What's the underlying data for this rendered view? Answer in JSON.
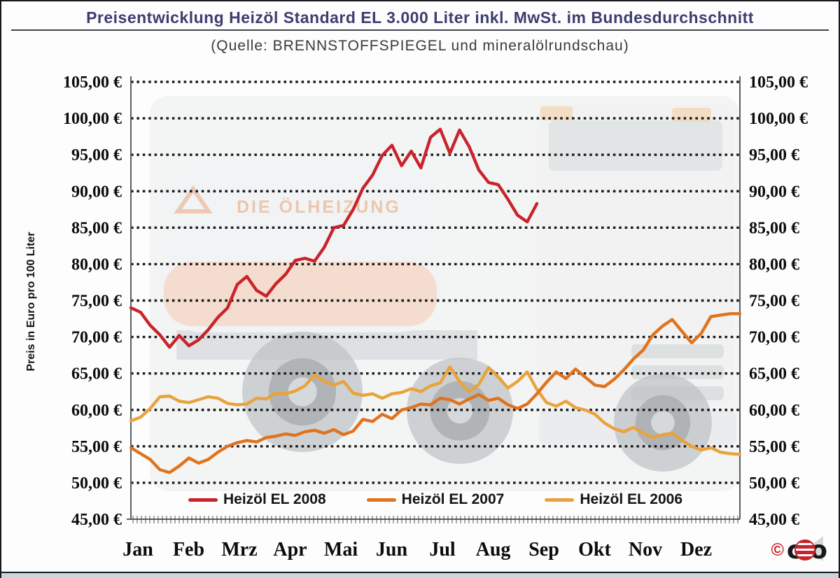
{
  "title": "Preisentwicklung Heizöl Standard EL 3.000 Liter inkl. MwSt. im Bundesdurchschnitt",
  "subtitle": "(Quelle: BRENNSTOFFSPIEGEL und mineralölrundschau)",
  "y_axis": {
    "label": "Preis in Euro pro 100 Liter",
    "tick_labels": [
      "105,00 €",
      "100,00 €",
      "95,00 €",
      "90,00 €",
      "85,00 €",
      "80,00 €",
      "75,00 €",
      "70,00 €",
      "65,00 €",
      "60,00 €",
      "55,00 €",
      "50,00 €",
      "45,00 €"
    ]
  },
  "x_axis": {
    "month_labels": [
      "Jan",
      "Feb",
      "Mrz",
      "Apr",
      "Mai",
      "Jun",
      "Jul",
      "Aug",
      "Sep",
      "Okt",
      "Nov",
      "Dez"
    ]
  },
  "legend": [
    {
      "label": "Heizöl EL 2008",
      "color": "#c9232b"
    },
    {
      "label": "Heizöl EL 2007",
      "color": "#e0731d"
    },
    {
      "label": "Heizöl EL 2006",
      "color": "#e9a33b"
    }
  ],
  "watermark": {
    "text": "DIE ÖLHEIZUNG"
  },
  "logo": {
    "copyright": "©",
    "letter_c": "c",
    "letter_o": "o"
  },
  "chart_data": {
    "type": "line",
    "title": "Preisentwicklung Heizöl Standard EL 3.000 Liter inkl. MwSt. im Bundesdurchschnitt",
    "ylabel": "Preis in Euro pro 100 Liter",
    "ylim": [
      45,
      105
    ],
    "y_step": 5,
    "y_unit": "EUR pro 100 Liter",
    "grid": "dotted-horizontal",
    "legend_position": "bottom-inside",
    "x_months": [
      "Jan",
      "Feb",
      "Mrz",
      "Apr",
      "Mai",
      "Jun",
      "Jul",
      "Aug",
      "Sep",
      "Okt",
      "Nov",
      "Dez"
    ],
    "points_per_year": 64,
    "series": [
      {
        "name": "Heizöl EL 2008",
        "color": "#c9232b",
        "values": [
          74.0,
          73.4,
          71.6,
          70.3,
          68.6,
          70.2,
          68.8,
          69.6,
          71.0,
          72.7,
          74.0,
          77.2,
          78.3,
          76.4,
          75.6,
          77.3,
          78.6,
          80.5,
          80.8,
          80.4,
          82.3,
          85.0,
          85.3,
          87.5,
          90.4,
          92.2,
          94.9,
          96.3,
          93.5,
          95.5,
          93.2,
          97.4,
          98.5,
          95.2,
          98.4,
          96.1,
          92.9,
          91.2,
          90.9,
          88.9,
          86.7,
          85.8,
          88.3
        ]
      },
      {
        "name": "Heizöl EL 2007",
        "color": "#e0731d",
        "values": [
          54.8,
          54.0,
          53.2,
          51.8,
          51.4,
          52.3,
          53.4,
          52.7,
          53.2,
          54.2,
          55.0,
          55.5,
          55.8,
          55.6,
          56.2,
          56.4,
          56.7,
          56.5,
          57.0,
          57.2,
          56.8,
          57.3,
          56.6,
          57.1,
          58.7,
          58.4,
          59.4,
          58.8,
          60.0,
          60.3,
          60.8,
          60.7,
          61.6,
          61.4,
          60.8,
          61.5,
          62.1,
          61.3,
          61.6,
          60.7,
          60.2,
          60.8,
          62.2,
          63.8,
          65.2,
          64.3,
          65.6,
          64.5,
          63.4,
          63.2,
          64.2,
          65.5,
          67.0,
          68.2,
          70.3,
          71.5,
          72.4,
          70.8,
          69.2,
          70.5,
          72.8,
          73.0,
          73.2,
          73.2
        ]
      },
      {
        "name": "Heizöl EL 2006",
        "color": "#e9a33b",
        "values": [
          58.5,
          59.0,
          60.2,
          61.8,
          61.9,
          61.2,
          61.0,
          61.4,
          61.8,
          61.6,
          60.9,
          60.7,
          60.8,
          61.6,
          61.5,
          62.3,
          62.2,
          62.6,
          63.3,
          64.8,
          63.9,
          63.4,
          63.9,
          62.3,
          62.0,
          62.2,
          61.6,
          62.2,
          62.4,
          62.9,
          62.5,
          63.3,
          63.7,
          65.9,
          63.9,
          62.5,
          63.5,
          65.8,
          64.5,
          63.0,
          63.9,
          65.2,
          62.8,
          61.0,
          60.5,
          61.2,
          60.3,
          60.0,
          59.4,
          58.2,
          57.4,
          57.0,
          57.6,
          56.8,
          56.2,
          56.6,
          56.8,
          55.8,
          55.0,
          54.5,
          54.8,
          54.2,
          54.0,
          53.9
        ]
      }
    ]
  }
}
